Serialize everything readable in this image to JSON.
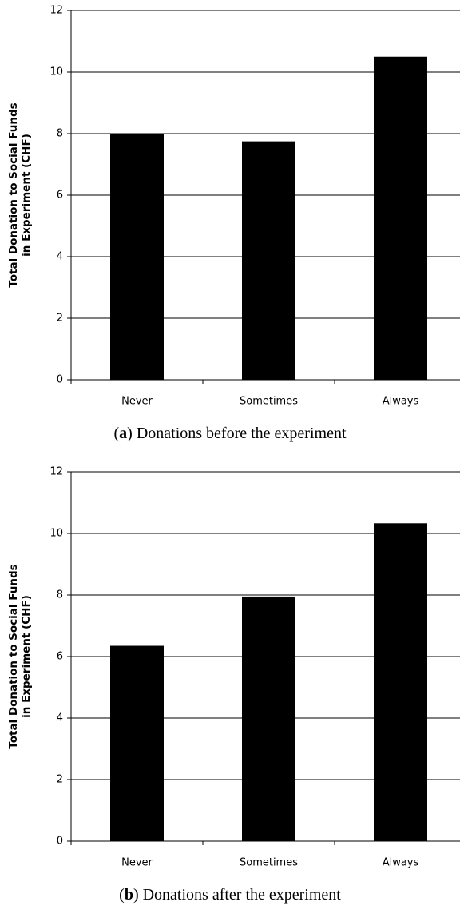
{
  "chart_data": [
    {
      "type": "bar",
      "ylabel": [
        "Total Donation to Social Funds",
        "in Experiment (CHF)"
      ],
      "categories": [
        "Never",
        "Sometimes",
        "Always"
      ],
      "values": [
        8.0,
        7.75,
        10.5
      ],
      "color": "#000000",
      "ylim": [
        0,
        12
      ],
      "yticks": [
        0,
        2,
        4,
        6,
        8,
        10,
        12
      ],
      "grid": true,
      "caption": [
        "(",
        "a",
        ") Donations before the experiment"
      ]
    },
    {
      "type": "bar",
      "ylabel": [
        "Total Donation to Social Funds",
        "in Experiment (CHF)"
      ],
      "categories": [
        "Never",
        "Sometimes",
        "Always"
      ],
      "values": [
        6.35,
        7.95,
        10.33
      ],
      "color": "#000000",
      "ylim": [
        0,
        12
      ],
      "yticks": [
        0,
        2,
        4,
        6,
        8,
        10,
        12
      ],
      "grid": true,
      "caption": [
        "(",
        "b",
        ") Donations after the experiment"
      ]
    }
  ]
}
